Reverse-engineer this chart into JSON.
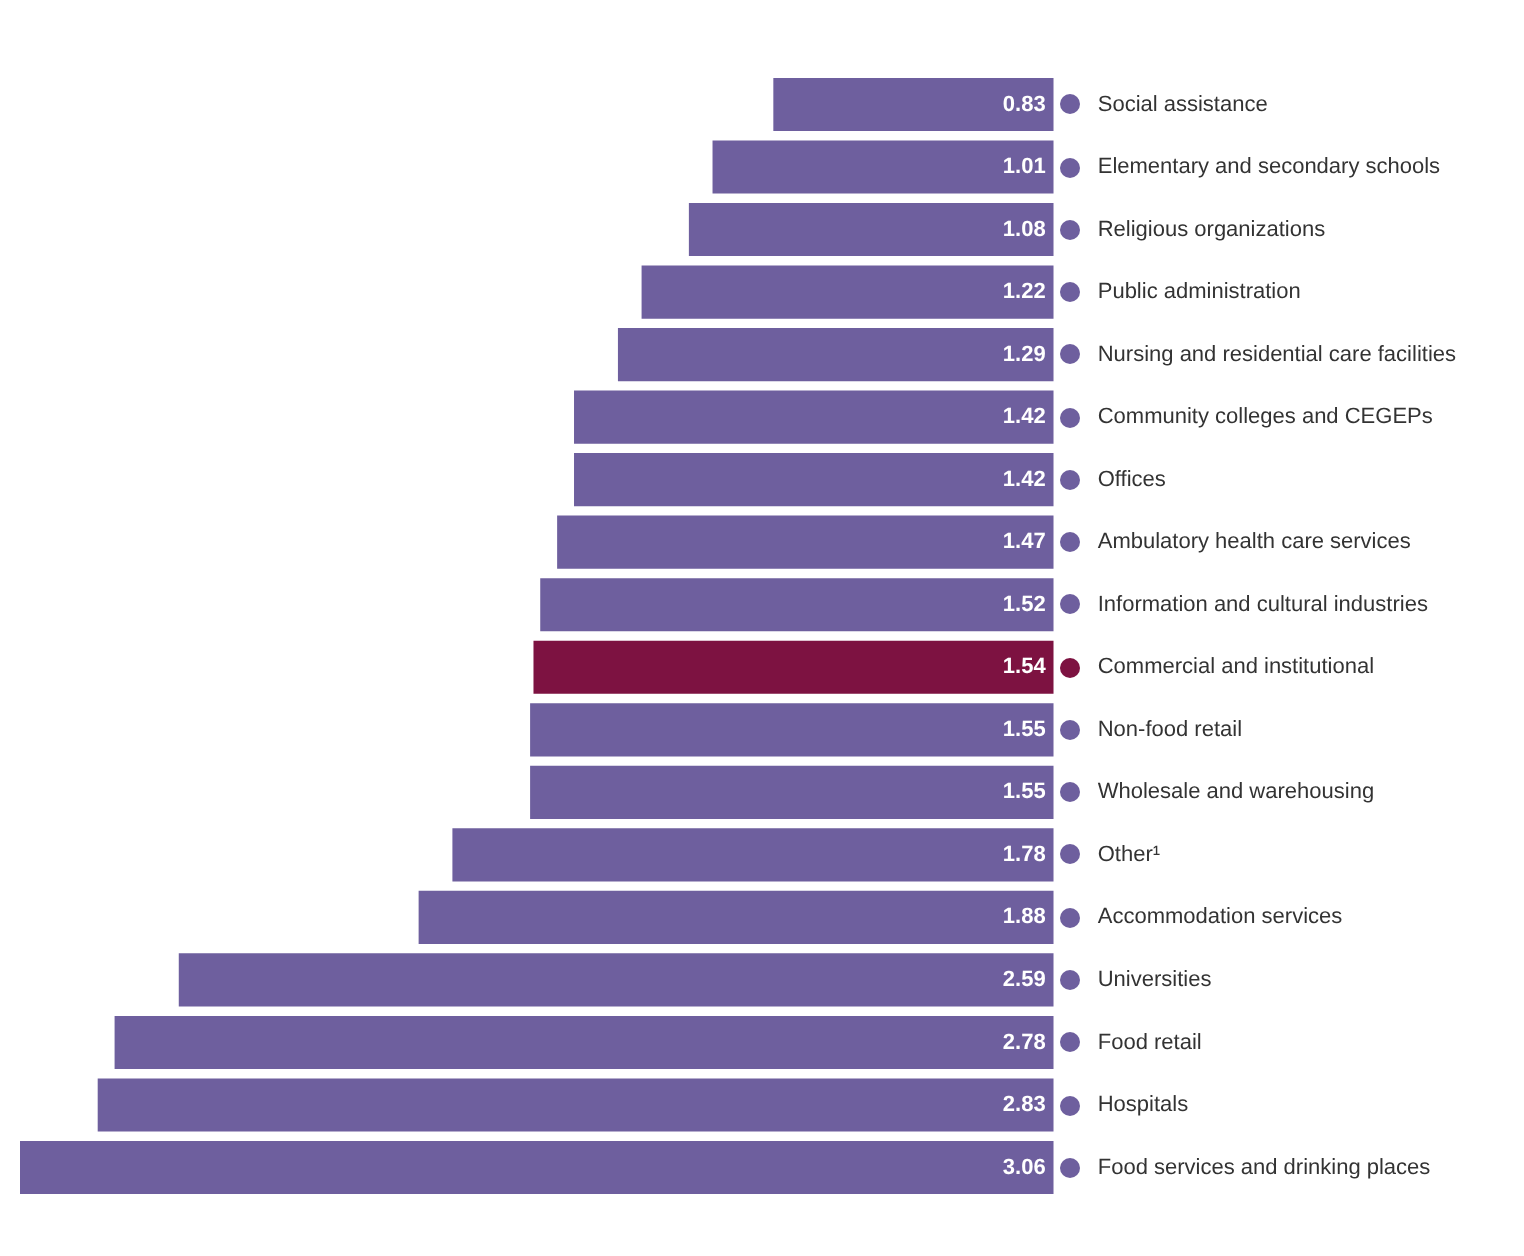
{
  "chart_data": {
    "type": "bar",
    "orientation": "horizontal",
    "categories": [
      "Social assistance",
      "Elementary and secondary schools",
      "Religious organizations",
      "Public administration",
      "Nursing and residential care facilities",
      "Community colleges and CEGEPs",
      "Offices",
      "Ambulatory health care services",
      "Information and cultural industries",
      "Commercial and institutional",
      "Non-food retail",
      "Wholesale and warehousing",
      "Other¹",
      "Accommodation services",
      "Universities",
      "Food retail",
      "Hospitals",
      "Food services and drinking places"
    ],
    "values": [
      0.83,
      1.01,
      1.08,
      1.22,
      1.29,
      1.42,
      1.42,
      1.47,
      1.52,
      1.54,
      1.55,
      1.55,
      1.78,
      1.88,
      2.59,
      2.78,
      2.83,
      3.06
    ],
    "colors": [
      "#6e5f9e",
      "#6e5f9e",
      "#6e5f9e",
      "#6e5f9e",
      "#6e5f9e",
      "#6e5f9e",
      "#6e5f9e",
      "#6e5f9e",
      "#6e5f9e",
      "#7d1241",
      "#6e5f9e",
      "#6e5f9e",
      "#6e5f9e",
      "#6e5f9e",
      "#6e5f9e",
      "#6e5f9e",
      "#6e5f9e",
      "#6e5f9e"
    ],
    "data_labels": true
  }
}
